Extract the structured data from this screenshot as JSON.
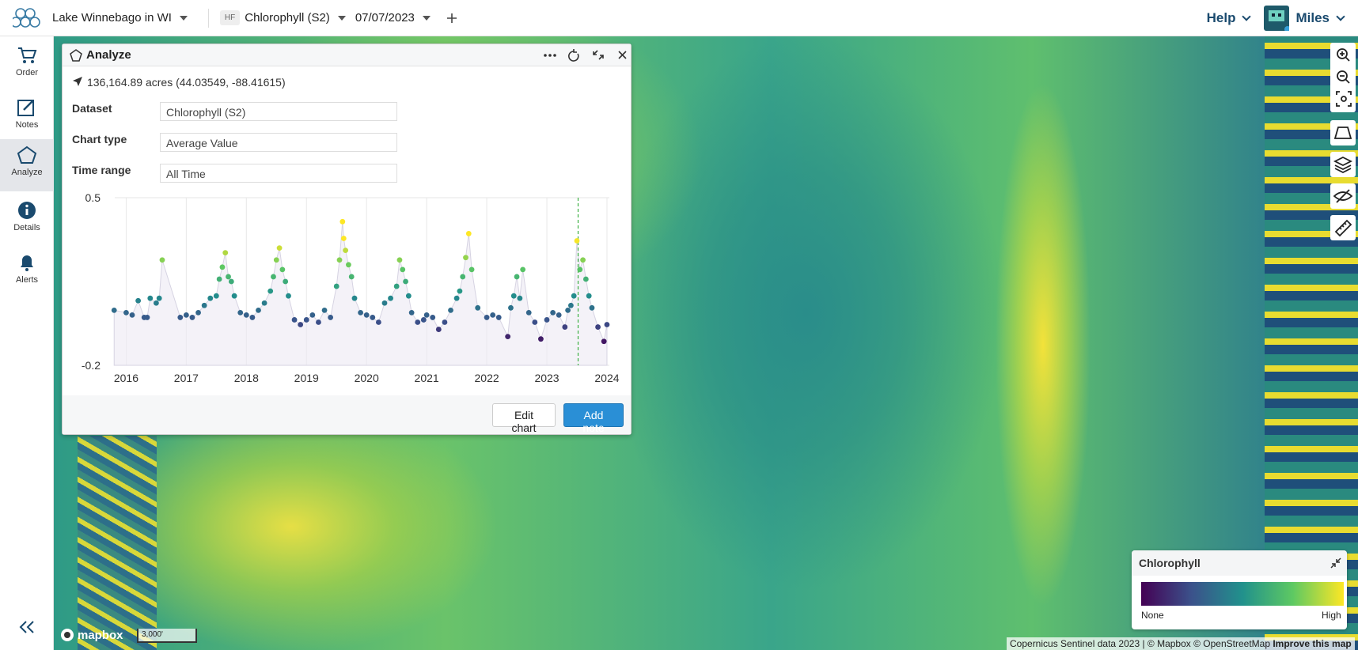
{
  "header": {
    "project": "Lake Winnebago in WI",
    "dataset_badge": "HF",
    "dataset": "Chlorophyll (S2)",
    "date": "07/07/2023",
    "help": "Help",
    "user": "Miles"
  },
  "sidebar": [
    {
      "label": "Order"
    },
    {
      "label": "Notes"
    },
    {
      "label": "Analyze"
    },
    {
      "label": "Details"
    },
    {
      "label": "Alerts"
    }
  ],
  "panel": {
    "title": "Analyze",
    "location": "136,164.89 acres (44.03549, -88.41615)",
    "fields": [
      {
        "label": "Dataset",
        "value": "Chlorophyll (S2)"
      },
      {
        "label": "Chart type",
        "value": "Average Value"
      },
      {
        "label": "Time range",
        "value": "All Time"
      }
    ],
    "buttons": [
      "Edit chart",
      "Add note"
    ]
  },
  "chart_data": {
    "type": "scatter",
    "x": [
      2015.8,
      2016.0,
      2016.1,
      2016.2,
      2016.3,
      2016.35,
      2016.4,
      2016.5,
      2016.55,
      2016.6,
      2016.9,
      2017.0,
      2017.1,
      2017.2,
      2017.3,
      2017.4,
      2017.5,
      2017.55,
      2017.6,
      2017.65,
      2017.7,
      2017.75,
      2017.8,
      2017.9,
      2018.0,
      2018.1,
      2018.2,
      2018.3,
      2018.4,
      2018.45,
      2018.5,
      2018.55,
      2018.6,
      2018.65,
      2018.7,
      2018.8,
      2018.9,
      2019.0,
      2019.1,
      2019.2,
      2019.3,
      2019.4,
      2019.5,
      2019.55,
      2019.6,
      2019.62,
      2019.65,
      2019.7,
      2019.75,
      2019.8,
      2019.9,
      2020.0,
      2020.1,
      2020.2,
      2020.3,
      2020.4,
      2020.5,
      2020.55,
      2020.6,
      2020.65,
      2020.7,
      2020.75,
      2020.85,
      2020.95,
      2021.0,
      2021.1,
      2021.2,
      2021.3,
      2021.4,
      2021.5,
      2021.55,
      2021.6,
      2021.65,
      2021.7,
      2021.75,
      2021.85,
      2022.0,
      2022.1,
      2022.2,
      2022.35,
      2022.4,
      2022.45,
      2022.5,
      2022.55,
      2022.6,
      2022.7,
      2022.8,
      2022.9,
      2023.0,
      2023.1,
      2023.2,
      2023.3,
      2023.35,
      2023.4,
      2023.45,
      2023.5,
      2023.55,
      2023.6,
      2023.65,
      2023.7,
      2023.75,
      2023.85,
      2023.95,
      2024.0
    ],
    "values": [
      0.03,
      0.02,
      0.01,
      0.07,
      0.0,
      0.0,
      0.08,
      0.06,
      0.08,
      0.24,
      0.0,
      0.01,
      0.0,
      0.02,
      0.05,
      0.08,
      0.09,
      0.16,
      0.21,
      0.27,
      0.17,
      0.15,
      0.09,
      0.02,
      0.01,
      0.0,
      0.03,
      0.06,
      0.11,
      0.17,
      0.24,
      0.29,
      0.2,
      0.15,
      0.09,
      -0.01,
      -0.03,
      -0.01,
      0.01,
      -0.02,
      0.03,
      0.0,
      0.13,
      0.24,
      0.4,
      0.33,
      0.28,
      0.22,
      0.17,
      0.08,
      0.02,
      0.01,
      0.0,
      -0.02,
      0.06,
      0.08,
      0.13,
      0.24,
      0.2,
      0.15,
      0.09,
      0.02,
      -0.02,
      -0.01,
      0.01,
      0.0,
      -0.05,
      -0.02,
      0.03,
      0.08,
      0.11,
      0.17,
      0.25,
      0.35,
      0.2,
      0.04,
      0.0,
      0.01,
      0.0,
      -0.08,
      0.04,
      0.09,
      0.17,
      0.08,
      0.2,
      0.02,
      -0.02,
      -0.09,
      -0.01,
      0.02,
      0.01,
      -0.04,
      0.03,
      0.05,
      0.09,
      0.32,
      0.2,
      0.24,
      0.16,
      0.09,
      0.04,
      -0.04,
      -0.1,
      -0.03
    ],
    "xlim": [
      2015.81,
      2024.04
    ],
    "xticks": [
      2016,
      2017,
      2018,
      2019,
      2020,
      2021,
      2022,
      2023,
      2024
    ],
    "ylim": [
      -0.2,
      0.5
    ],
    "yticks": [
      -0.2,
      0.5
    ],
    "marker_x": 2023.52,
    "grid": true
  },
  "legend": {
    "title": "Chlorophyll",
    "low": "None",
    "high": "High"
  },
  "map": {
    "logo": "mapbox",
    "scale": "3,000'",
    "attribution": "Copernicus Sentinel data 2023 | © Mapbox © OpenStreetMap",
    "improve": "Improve this map"
  }
}
